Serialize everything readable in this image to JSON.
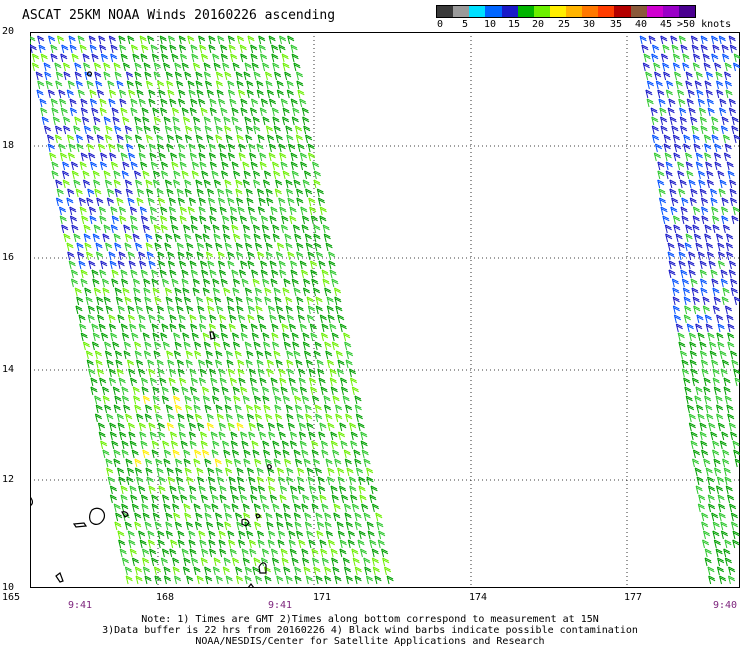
{
  "title": "ASCAT 25KM NOAA Winds 20160226 ascending",
  "legend": {
    "colors": [
      "#3a3a3a",
      "#9a9a9a",
      "#00e0ff",
      "#0066ff",
      "#1a1ac8",
      "#00b400",
      "#6cf000",
      "#ffee00",
      "#ffb400",
      "#ff7800",
      "#ff3c00",
      "#b40000",
      "#8a5a3a",
      "#d000d0",
      "#9a00c8",
      "#4a0090"
    ],
    "labels": [
      "0",
      "5",
      "10",
      "15",
      "20",
      "25",
      "30",
      "35",
      "40",
      "45",
      ">50 knots"
    ]
  },
  "map": {
    "lat_labels": [
      "20",
      "18",
      "16",
      "14",
      "12",
      "10"
    ],
    "lon_labels": [
      "165",
      "168",
      "171",
      "174",
      "177"
    ],
    "time_labels": [
      "9:41",
      "9:41",
      "9:40"
    ]
  },
  "notes": [
    "Note: 1) Times are GMT 2)Times along bottom correspond to measurement at 15N",
    "3)Data buffer is 22 hrs from 20160226 4) Black wind barbs indicate possible contamination",
    "NOAA/NESDIS/Center for Satellite Applications and Research"
  ]
}
